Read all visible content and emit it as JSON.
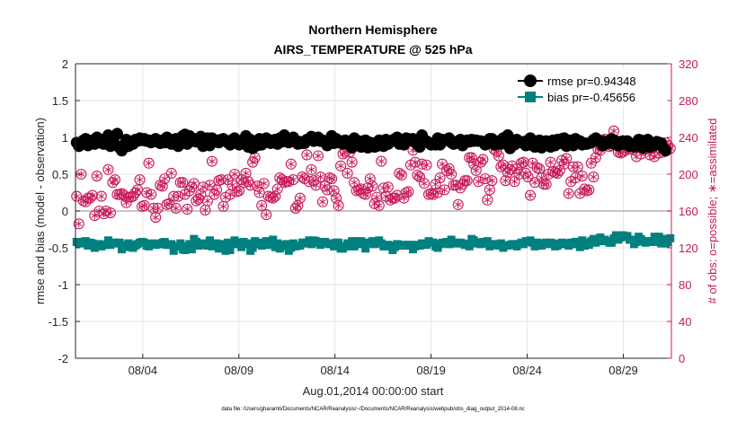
{
  "chart_data": {
    "type": "line",
    "title": "Northern Hemisphere",
    "subtitle": "AIRS_TEMPERATURE @ 525 hPa",
    "xlabel": "Aug.01,2014 00:00:00 start",
    "ylabel": "rmse and bias (model - observation)",
    "ylabel_right": "# of obs: o=possible; ∗=assimilated",
    "footnote": "data file: /Users/gharamti/Documents/NCAR/Reanalysis/~/Documents/NCAR/Reanalysis/webpub/obs_diag_output_2014-08.nc",
    "xlim": [
      0,
      31
    ],
    "ylim": [
      -2,
      2
    ],
    "ylim_right": [
      0,
      320
    ],
    "x_ticks": [
      3.5,
      8.5,
      13.5,
      18.5,
      23.5,
      28.5
    ],
    "x_tick_labels": [
      "08/04",
      "08/09",
      "08/14",
      "08/19",
      "08/24",
      "08/29"
    ],
    "y_ticks": [
      -2,
      -1.5,
      -1,
      -0.5,
      0,
      0.5,
      1,
      1.5,
      2
    ],
    "y_tick_labels": [
      "-2",
      "-1.5",
      "-1",
      "-0.5",
      "0",
      "0.5",
      "1",
      "1.5",
      "2"
    ],
    "y_ticks_right": [
      0,
      40,
      80,
      120,
      160,
      200,
      240,
      280,
      320
    ],
    "y_tick_labels_right": [
      "0",
      "40",
      "80",
      "120",
      "160",
      "200",
      "240",
      "280",
      "320"
    ],
    "grid": true,
    "legend_position": "top-right",
    "colors": {
      "rmse": "#000000",
      "bias": "#00807f",
      "obs": "#c8195a",
      "zero_line": "#b4b4b4"
    },
    "series": [
      {
        "name": "rmse pr=0.94348",
        "marker": "circle",
        "values": [
          0.93,
          0.88,
          0.91,
          0.96,
          0.98,
          0.89,
          0.94,
          0.96,
          0.91,
          1.0,
          0.93,
          0.97,
          0.91,
          0.92,
          1.03,
          0.88,
          0.91,
          1.02,
          1.05,
          0.86,
          0.82,
          0.9,
          0.97,
          0.88,
          0.93,
          0.91,
          0.97,
          0.95,
          0.99,
          0.96,
          0.98,
          0.95,
          0.96,
          0.93,
          0.95,
          0.98,
          0.94,
          0.92,
          0.96,
          0.93,
          1.0,
          0.95,
          0.91,
          0.97,
          0.98,
          0.88,
          0.97,
          1.02,
          1.04,
          0.91,
          1.02,
          0.95,
          0.98,
          0.94,
          0.96,
          1.01,
          0.88,
          0.97,
          0.99,
          0.89,
          0.99,
          0.95,
          0.96,
          0.93,
          0.97,
          0.98,
          0.95,
          0.93,
          0.9,
          0.97,
          0.99,
          0.95,
          0.9,
          0.95,
          0.93,
          1.02,
          0.87,
          0.97,
          0.85,
          0.88,
          0.89,
          0.98,
          0.9,
          0.96,
          0.99,
          0.97,
          0.92,
          0.96,
          0.97,
          0.91,
          0.99,
          0.94,
          1.03,
          0.97,
          0.93,
          0.97,
          1.0,
          0.96,
          0.91,
          0.94,
          0.92,
          0.92,
          0.97,
          0.98,
          1.01,
          0.95,
          0.96,
          1.0,
          0.95,
          0.96,
          0.94,
          0.89,
          0.95,
          1.02,
          0.92,
          0.98,
          0.93,
          0.95,
          0.91,
          0.96,
          0.93,
          0.9,
          0.86,
          0.99,
          0.93,
          0.95,
          0.87,
          0.95,
          0.96,
          0.86,
          0.93,
          0.92,
          0.87,
          0.88,
          0.96,
          0.92,
          0.88,
          0.97,
          0.91,
          0.94,
          0.96,
          0.98,
          1.0,
          0.91,
          0.94,
          0.9,
          0.99,
          0.98,
          0.96,
          0.98,
          0.93,
          0.9,
          0.87,
          1.03,
          0.95,
          0.95,
          0.93,
          0.9,
          0.92,
          0.9,
          0.99,
          0.9,
          0.97,
          0.96,
          0.96,
          0.99,
          0.93,
          0.91,
          0.92,
          0.95,
          0.97,
          0.89,
          0.93,
          0.96,
          0.94,
          0.97,
          0.95,
          0.96,
          0.95,
          0.95,
          0.94,
          0.9,
          0.95,
          0.98,
          0.98,
          0.9,
          0.91,
          0.95,
          0.91,
          0.99,
          0.93,
          1.03,
          0.85,
          0.96,
          0.9,
          0.97,
          0.94,
          0.93,
          0.94,
          0.89,
          0.96,
          0.99,
          0.89,
          0.87,
          0.9,
          0.96,
          0.86,
          0.94,
          0.95,
          0.92,
          0.87,
          0.96,
          0.89,
          0.97,
          0.92,
          0.98,
          0.99,
          0.88,
          0.91,
          0.96,
          0.89,
          0.98,
          0.95,
          0.95,
          0.9,
          0.92,
          0.91,
          0.92,
          0.93,
          0.97,
          0.99,
          0.95,
          0.95,
          0.89,
          0.94,
          0.92,
          0.93,
          0.98,
          0.91,
          0.95,
          0.89,
          0.91,
          0.95,
          0.91,
          0.95,
          0.88,
          0.89,
          0.87,
          0.92,
          0.97,
          0.96,
          0.86,
          0.92,
          0.97,
          0.87,
          0.91,
          0.89,
          0.94,
          0.93,
          0.92,
          0.85,
          0.82
        ]
      },
      {
        "name": "bias pr=-0.45656",
        "marker": "square",
        "values": [
          -0.42,
          -0.44,
          -0.44,
          -0.42,
          -0.41,
          -0.47,
          -0.43,
          -0.44,
          -0.5,
          -0.47,
          -0.45,
          -0.48,
          -0.46,
          -0.46,
          -0.4,
          -0.46,
          -0.43,
          -0.43,
          -0.44,
          -0.43,
          -0.52,
          -0.46,
          -0.49,
          -0.44,
          -0.46,
          -0.5,
          -0.47,
          -0.45,
          -0.43,
          -0.42,
          -0.43,
          -0.47,
          -0.48,
          -0.45,
          -0.44,
          -0.46,
          -0.45,
          -0.45,
          -0.43,
          -0.42,
          -0.46,
          -0.46,
          -0.45,
          -0.54,
          -0.48,
          -0.48,
          -0.44,
          -0.52,
          -0.53,
          -0.48,
          -0.45,
          -0.52,
          -0.38,
          -0.42,
          -0.47,
          -0.46,
          -0.44,
          -0.45,
          -0.47,
          -0.4,
          -0.48,
          -0.45,
          -0.44,
          -0.51,
          -0.45,
          -0.46,
          -0.54,
          -0.43,
          -0.53,
          -0.45,
          -0.4,
          -0.43,
          -0.45,
          -0.49,
          -0.42,
          -0.45,
          -0.44,
          -0.54,
          -0.5,
          -0.41,
          -0.43,
          -0.45,
          -0.47,
          -0.43,
          -0.41,
          -0.46,
          -0.46,
          -0.39,
          -0.49,
          -0.44,
          -0.51,
          -0.46,
          -0.48,
          -0.45,
          -0.54,
          -0.5,
          -0.44,
          -0.48,
          -0.47,
          -0.47,
          -0.43,
          -0.43,
          -0.44,
          -0.4,
          -0.45,
          -0.4,
          -0.41,
          -0.43,
          -0.46,
          -0.42,
          -0.42,
          -0.44,
          -0.45,
          -0.44,
          -0.48,
          -0.43,
          -0.43,
          -0.51,
          -0.51,
          -0.48,
          -0.44,
          -0.48,
          -0.41,
          -0.48,
          -0.41,
          -0.45,
          -0.41,
          -0.43,
          -0.51,
          -0.43,
          -0.44,
          -0.41,
          -0.45,
          -0.42,
          -0.4,
          -0.44,
          -0.48,
          -0.48,
          -0.46,
          -0.47,
          -0.53,
          -0.49,
          -0.45,
          -0.46,
          -0.47,
          -0.46,
          -0.47,
          -0.46,
          -0.46,
          -0.52,
          -0.48,
          -0.46,
          -0.47,
          -0.44,
          -0.45,
          -0.46,
          -0.41,
          -0.43,
          -0.43,
          -0.48,
          -0.5,
          -0.45,
          -0.43,
          -0.44,
          -0.42,
          -0.45,
          -0.39,
          -0.44,
          -0.43,
          -0.44,
          -0.43,
          -0.44,
          -0.46,
          -0.45,
          -0.48,
          -0.38,
          -0.4,
          -0.44,
          -0.43,
          -0.45,
          -0.42,
          -0.44,
          -0.41,
          -0.48,
          -0.45,
          -0.45,
          -0.46,
          -0.47,
          -0.44,
          -0.5,
          -0.47,
          -0.47,
          -0.46,
          -0.45,
          -0.45,
          -0.48,
          -0.45,
          -0.43,
          -0.45,
          -0.41,
          -0.42,
          -0.4,
          -0.43,
          -0.48,
          -0.43,
          -0.47,
          -0.47,
          -0.44,
          -0.43,
          -0.45,
          -0.43,
          -0.44,
          -0.48,
          -0.47,
          -0.45,
          -0.43,
          -0.45,
          -0.44,
          -0.47,
          -0.43,
          -0.45,
          -0.42,
          -0.42,
          -0.49,
          -0.4,
          -0.47,
          -0.43,
          -0.46,
          -0.41,
          -0.38,
          -0.43,
          -0.41,
          -0.36,
          -0.41,
          -0.39,
          -0.41,
          -0.43,
          -0.43,
          -0.37,
          -0.33,
          -0.39,
          -0.36,
          -0.33,
          -0.35,
          -0.34,
          -0.39,
          -0.39,
          -0.45,
          -0.42,
          -0.35,
          -0.38,
          -0.41,
          -0.43,
          -0.41,
          -0.42,
          -0.41,
          -0.35,
          -0.42,
          -0.35,
          -0.44,
          -0.38,
          -0.44,
          -0.42,
          -0.37
        ]
      }
    ],
    "obs_counts": [
      176,
      146,
      200,
      171,
      170,
      174,
      174,
      177,
      155,
      198,
      160,
      176,
      157,
      160,
      205,
      158,
      191,
      194,
      178,
      178,
      179,
      177,
      169,
      175,
      175,
      176,
      180,
      183,
      194,
      165,
      166,
      180,
      212,
      178,
      163,
      153,
      163,
      188,
      187,
      195,
      167,
      168,
      201,
      176,
      163,
      176,
      191,
      191,
      178,
      162,
      182,
      186,
      190,
      171,
      173,
      178,
      186,
      161,
      171,
      188,
      214,
      178,
      183,
      193,
      194,
      165,
      175,
      194,
      178,
      188,
      200,
      181,
      182,
      194,
      191,
      201,
      192,
      188,
      213,
      218,
      187,
      180,
      166,
      190,
      156,
      176,
      175,
      174,
      176,
      184,
      196,
      194,
      191,
      192,
      192,
      211,
      194,
      163,
      166,
      174,
      197,
      195,
      221,
      192,
      205,
      193,
      188,
      220,
      197,
      170,
      187,
      183,
      196,
      195,
      182,
      174,
      166,
      209,
      222,
      224,
      201,
      224,
      213,
      191,
      182,
      183,
      184,
      179,
      178,
      185,
      195,
      187,
      168,
      175,
      166,
      214,
      185,
      176,
      186,
      172,
      174,
      174,
      177,
      201,
      199,
      174,
      180,
      181,
      210,
      226,
      213,
      199,
      197,
      211,
      190,
      210,
      178,
      179,
      178,
      189,
      180,
      196,
      211,
      183,
      204,
      206,
      200,
      188,
      188,
      167,
      185,
      189,
      193,
      193,
      218,
      218,
      211,
      204,
      192,
      213,
      216,
      195,
      172,
      183,
      193,
      227,
      225,
      220,
      208,
      210,
      193,
      202,
      205,
      209,
      192,
      206,
      200,
      212,
      213,
      201,
      197,
      177,
      212,
      191,
      207,
      206,
      196,
      189,
      189,
      200,
      213,
      203,
      202,
      201,
      204,
      215,
      211,
      217,
      179,
      192,
      208,
      196,
      208,
      179,
      198,
      184,
      182,
      183,
      212,
      197,
      218,
      227,
      226,
      237,
      238,
      232,
      230,
      231,
      247,
      236,
      224,
      223,
      224,
      226,
      229,
      227,
      233,
      227,
      219,
      235,
      222,
      227,
      227,
      229,
      221,
      228,
      219,
      232,
      223,
      233,
      224,
      234,
      231,
      228
    ]
  },
  "legend": {
    "rmse_label": "rmse pr=0.94348",
    "bias_label": "bias pr=-0.45656"
  }
}
